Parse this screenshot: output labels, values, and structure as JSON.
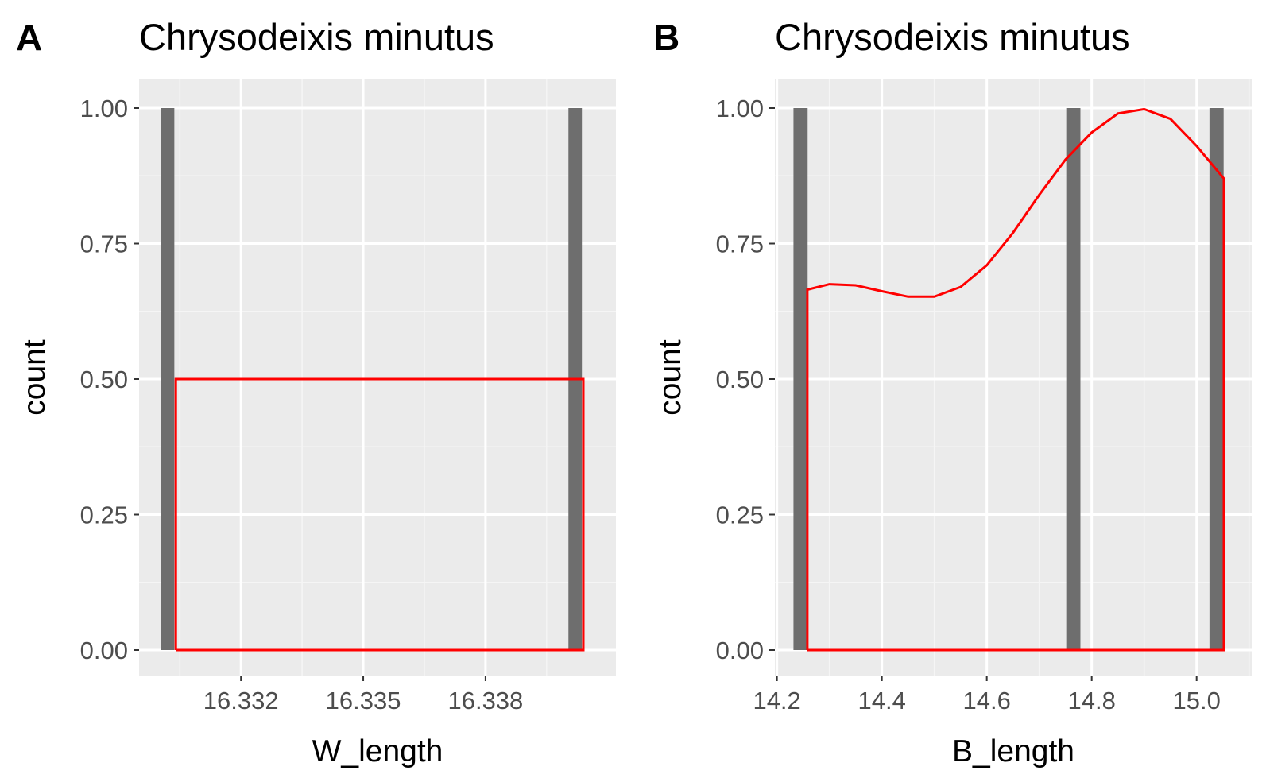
{
  "colors": {
    "panel_background": "#ebebeb",
    "grid_major": "#ffffff",
    "grid_minor": "#f5f5f5",
    "bar_fill": "#6e6e6e",
    "density_line": "#ff0000",
    "tick_text": "#4d4d4d"
  },
  "chart_data": [
    {
      "tag": "A",
      "type": "bar",
      "title": "Chrysodeixis minutus",
      "xlabel": "W_length",
      "ylabel": "count",
      "xlim": [
        16.3295,
        16.3412
      ],
      "ylim": [
        0,
        1.0
      ],
      "grid": true,
      "x_ticks": [
        16.332,
        16.335,
        16.338
      ],
      "x_tick_labels": [
        "16.332",
        "16.335",
        "16.338"
      ],
      "y_ticks": [
        0,
        0.25,
        0.5,
        0.75,
        1.0
      ],
      "y_tick_labels": [
        "0.00",
        "0.25",
        "0.50",
        "0.75",
        "1.00"
      ],
      "bar_width": 0.00033,
      "bars": [
        {
          "x": 16.3302,
          "count": 1
        },
        {
          "x": 16.3402,
          "count": 1
        }
      ],
      "density": [
        [
          16.3304,
          0
        ],
        [
          16.3304,
          0.5
        ],
        [
          16.3404,
          0.5
        ],
        [
          16.3404,
          0
        ],
        [
          16.3304,
          0
        ]
      ]
    },
    {
      "tag": "B",
      "type": "bar",
      "title": "Chrysodeixis minutus",
      "xlabel": "B_length",
      "ylabel": "count",
      "xlim": [
        14.196,
        15.105
      ],
      "ylim": [
        0,
        1.0
      ],
      "grid": true,
      "x_ticks": [
        14.2,
        14.4,
        14.6,
        14.8,
        15.0
      ],
      "x_tick_labels": [
        "14.2",
        "14.4",
        "14.6",
        "14.8",
        "15.0"
      ],
      "y_ticks": [
        0,
        0.25,
        0.5,
        0.75,
        1.0
      ],
      "y_tick_labels": [
        "0.00",
        "0.25",
        "0.50",
        "0.75",
        "1.00"
      ],
      "bar_width": 0.027,
      "bars": [
        {
          "x": 14.245,
          "count": 1
        },
        {
          "x": 14.765,
          "count": 1
        },
        {
          "x": 15.038,
          "count": 1
        }
      ],
      "density": [
        [
          14.258,
          0
        ],
        [
          14.258,
          0.665
        ],
        [
          14.3,
          0.675
        ],
        [
          14.35,
          0.673
        ],
        [
          14.4,
          0.662
        ],
        [
          14.45,
          0.652
        ],
        [
          14.5,
          0.652
        ],
        [
          14.55,
          0.67
        ],
        [
          14.6,
          0.71
        ],
        [
          14.65,
          0.77
        ],
        [
          14.7,
          0.84
        ],
        [
          14.75,
          0.905
        ],
        [
          14.8,
          0.955
        ],
        [
          14.85,
          0.99
        ],
        [
          14.9,
          0.998
        ],
        [
          14.95,
          0.98
        ],
        [
          15.0,
          0.93
        ],
        [
          15.052,
          0.87
        ],
        [
          15.052,
          0
        ],
        [
          14.258,
          0
        ]
      ]
    }
  ]
}
